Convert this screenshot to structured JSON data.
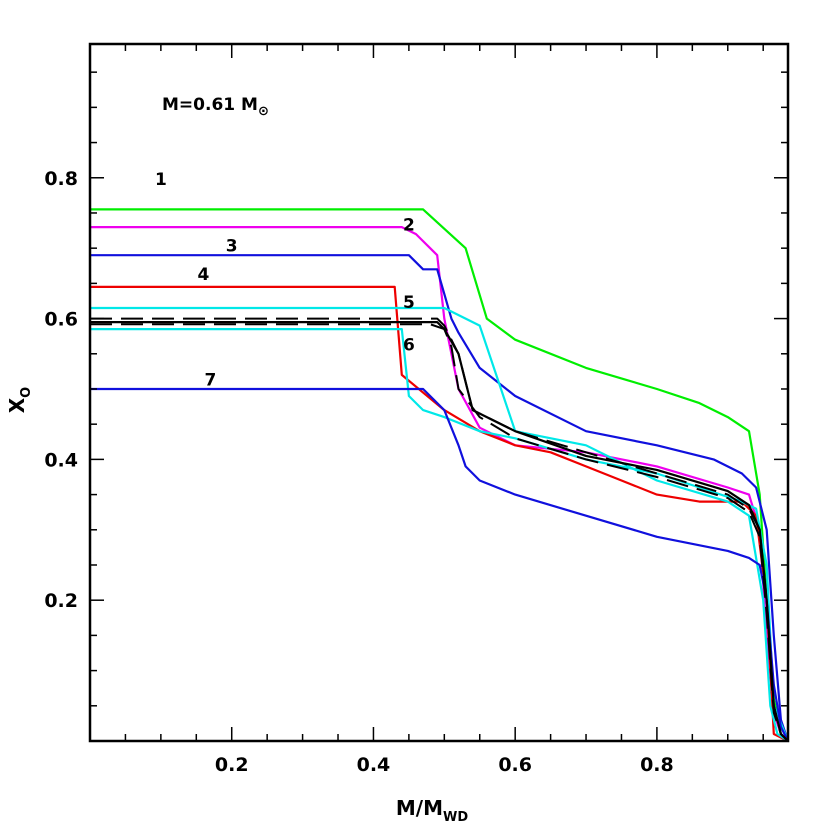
{
  "chart_data": {
    "type": "line",
    "annotation": {
      "main": "M=0.61 M",
      "symbol": "⊙"
    },
    "xlabel": {
      "main": "M/M",
      "sub": "WD"
    },
    "ylabel": {
      "main": "X",
      "sub": "O"
    },
    "xlim": [
      0.0,
      0.985
    ],
    "ylim": [
      0.0,
      0.99
    ],
    "xticks": [
      0.2,
      0.4,
      0.6,
      0.8
    ],
    "xtick_labels": [
      "0.2",
      "0.4",
      "0.6",
      "0.8"
    ],
    "yticks": [
      0.2,
      0.4,
      0.6,
      0.8
    ],
    "ytick_labels": [
      "0.2",
      "0.4",
      "0.6",
      "0.8"
    ],
    "grid": false,
    "curve_labels": [
      {
        "text": "1",
        "x": 0.1,
        "y": 0.79
      },
      {
        "text": "2",
        "x": 0.45,
        "y": 0.725
      },
      {
        "text": "3",
        "x": 0.2,
        "y": 0.695
      },
      {
        "text": "4",
        "x": 0.16,
        "y": 0.655
      },
      {
        "text": "5",
        "x": 0.45,
        "y": 0.615
      },
      {
        "text": "6",
        "x": 0.45,
        "y": 0.555
      },
      {
        "text": "7",
        "x": 0.17,
        "y": 0.505
      }
    ],
    "series": [
      {
        "color": "#00ee00",
        "dash": false,
        "x": [
          0.0,
          0.47,
          0.53,
          0.56,
          0.6,
          0.7,
          0.8,
          0.86,
          0.9,
          0.93,
          0.945,
          0.955,
          0.965,
          0.975,
          0.985
        ],
        "y": [
          0.755,
          0.755,
          0.7,
          0.6,
          0.57,
          0.53,
          0.5,
          0.48,
          0.46,
          0.44,
          0.35,
          0.2,
          0.06,
          0.01,
          0.0
        ]
      },
      {
        "color": "#ee00ee",
        "dash": false,
        "x": [
          0.0,
          0.44,
          0.46,
          0.49,
          0.5,
          0.52,
          0.55,
          0.6,
          0.7,
          0.8,
          0.9,
          0.93,
          0.945,
          0.955,
          0.965,
          0.975,
          0.985
        ],
        "y": [
          0.73,
          0.73,
          0.72,
          0.69,
          0.6,
          0.5,
          0.445,
          0.42,
          0.41,
          0.39,
          0.36,
          0.35,
          0.3,
          0.15,
          0.04,
          0.01,
          0.0
        ]
      },
      {
        "color": "#1010dd",
        "dash": false,
        "x": [
          0.0,
          0.45,
          0.47,
          0.49,
          0.51,
          0.52,
          0.55,
          0.6,
          0.7,
          0.8,
          0.88,
          0.92,
          0.94,
          0.955,
          0.965,
          0.975,
          0.985
        ],
        "y": [
          0.69,
          0.69,
          0.67,
          0.67,
          0.6,
          0.58,
          0.53,
          0.49,
          0.44,
          0.42,
          0.4,
          0.38,
          0.36,
          0.3,
          0.15,
          0.03,
          0.0
        ]
      },
      {
        "color": "#ee0000",
        "dash": false,
        "x": [
          0.0,
          0.43,
          0.44,
          0.5,
          0.55,
          0.6,
          0.65,
          0.7,
          0.75,
          0.8,
          0.86,
          0.92,
          0.94,
          0.955,
          0.965,
          0.985
        ],
        "y": [
          0.645,
          0.645,
          0.52,
          0.47,
          0.44,
          0.42,
          0.41,
          0.39,
          0.37,
          0.35,
          0.34,
          0.34,
          0.32,
          0.2,
          0.01,
          0.0
        ]
      },
      {
        "color": "#00e8e8",
        "dash": false,
        "x": [
          0.0,
          0.5,
          0.55,
          0.58,
          0.6,
          0.7,
          0.8,
          0.9,
          0.93,
          0.95,
          0.96,
          0.97,
          0.985
        ],
        "y": [
          0.615,
          0.615,
          0.59,
          0.5,
          0.44,
          0.42,
          0.37,
          0.34,
          0.32,
          0.2,
          0.05,
          0.01,
          0.0
        ]
      },
      {
        "color": "#00e8e8",
        "dash": false,
        "x": [
          0.0,
          0.44,
          0.45,
          0.47,
          0.5,
          0.55,
          0.6,
          0.7,
          0.8,
          0.86,
          0.92,
          0.94,
          0.955,
          0.965,
          0.985
        ],
        "y": [
          0.585,
          0.585,
          0.49,
          0.47,
          0.46,
          0.44,
          0.43,
          0.4,
          0.38,
          0.36,
          0.34,
          0.33,
          0.25,
          0.05,
          0.0
        ]
      },
      {
        "color": "#1010dd",
        "dash": false,
        "x": [
          0.0,
          0.47,
          0.5,
          0.52,
          0.53,
          0.55,
          0.6,
          0.7,
          0.8,
          0.9,
          0.93,
          0.945,
          0.955,
          0.965,
          0.975,
          0.985
        ],
        "y": [
          0.5,
          0.5,
          0.47,
          0.42,
          0.39,
          0.37,
          0.35,
          0.32,
          0.29,
          0.27,
          0.26,
          0.25,
          0.2,
          0.08,
          0.02,
          0.0
        ]
      },
      {
        "color": "#000000",
        "dash": true,
        "x": [
          0.0,
          0.49,
          0.5,
          0.52,
          0.54,
          0.6,
          0.7,
          0.8,
          0.9,
          0.93,
          0.945,
          0.955,
          0.965,
          0.975,
          0.985
        ],
        "y": [
          0.6,
          0.6,
          0.59,
          0.55,
          0.47,
          0.44,
          0.41,
          0.38,
          0.35,
          0.33,
          0.3,
          0.2,
          0.05,
          0.01,
          0.0
        ]
      },
      {
        "color": "#000000",
        "dash": true,
        "x": [
          0.0,
          0.48,
          0.5,
          0.51,
          0.52,
          0.55,
          0.6,
          0.7,
          0.8,
          0.9,
          0.93,
          0.945,
          0.955,
          0.965,
          0.975,
          0.985
        ],
        "y": [
          0.592,
          0.592,
          0.585,
          0.56,
          0.5,
          0.46,
          0.43,
          0.4,
          0.375,
          0.345,
          0.325,
          0.29,
          0.18,
          0.04,
          0.01,
          0.0
        ]
      },
      {
        "color": "#000000",
        "dash": false,
        "x": [
          0.0,
          0.49,
          0.5,
          0.52,
          0.54,
          0.6,
          0.7,
          0.8,
          0.9,
          0.93,
          0.945,
          0.955,
          0.965,
          0.975,
          0.985
        ],
        "y": [
          0.595,
          0.595,
          0.585,
          0.55,
          0.47,
          0.44,
          0.405,
          0.385,
          0.355,
          0.335,
          0.3,
          0.2,
          0.05,
          0.01,
          0.0
        ]
      }
    ]
  }
}
